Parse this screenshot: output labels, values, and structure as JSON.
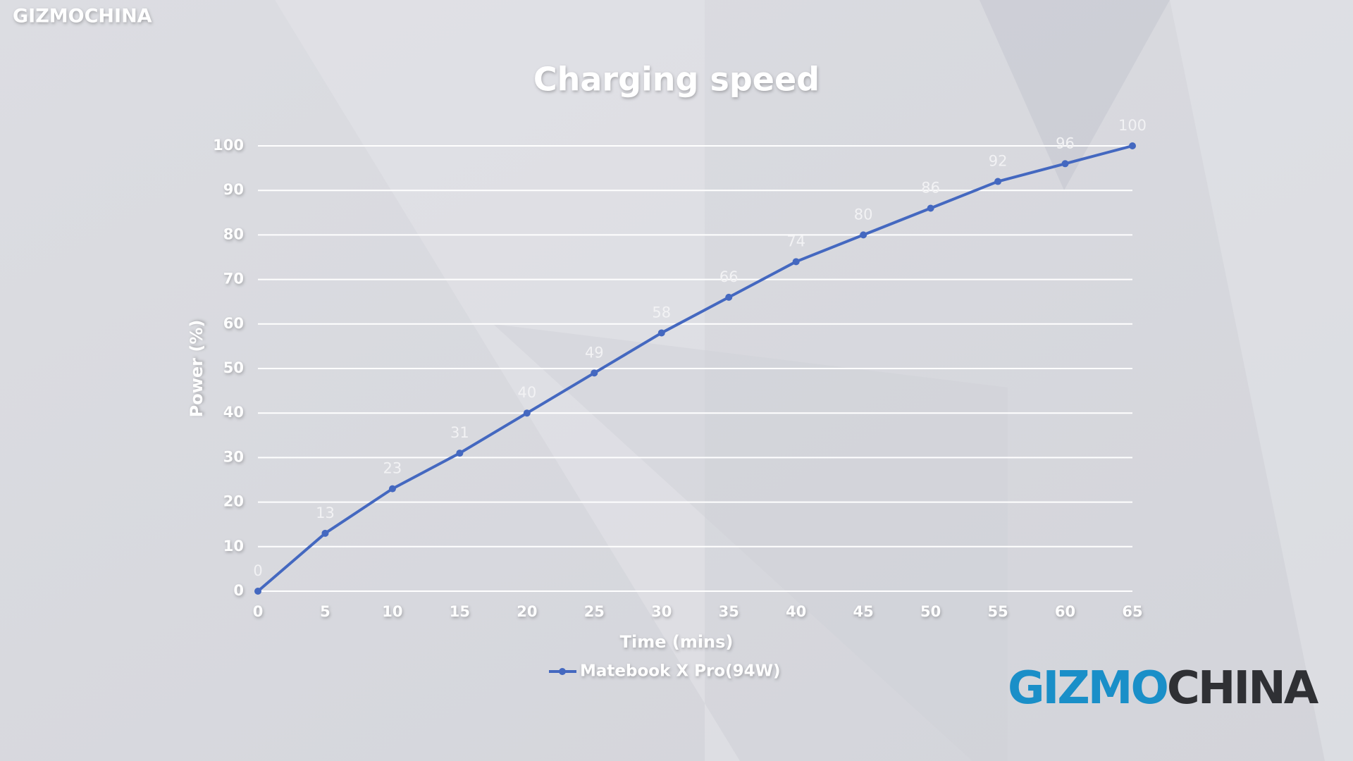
{
  "brand_top": "GIZMOCHINA",
  "brand_logo": {
    "blue": "GIZMO",
    "dark": "CHINA"
  },
  "chart_data": {
    "type": "line",
    "title": "Charging speed",
    "x_label": "Time (mins)",
    "y_label": "Power (%)",
    "x": [
      0,
      5,
      10,
      15,
      20,
      25,
      30,
      35,
      40,
      45,
      50,
      55,
      60,
      65
    ],
    "series": [
      {
        "name": "Matebook X Pro(94W)",
        "color": "#4468c0",
        "values": [
          0,
          13,
          23,
          31,
          40,
          49,
          58,
          66,
          74,
          80,
          86,
          92,
          96,
          100
        ]
      }
    ],
    "xlim": [
      0,
      65
    ],
    "xticks": [
      0,
      5,
      10,
      15,
      20,
      25,
      30,
      35,
      40,
      45,
      50,
      55,
      60,
      65
    ],
    "ylim": [
      0,
      100
    ],
    "yticks": [
      0,
      10,
      20,
      30,
      40,
      50,
      60,
      70,
      80,
      90,
      100
    ],
    "grid": true,
    "data_labels": true,
    "legend": "bottom"
  }
}
